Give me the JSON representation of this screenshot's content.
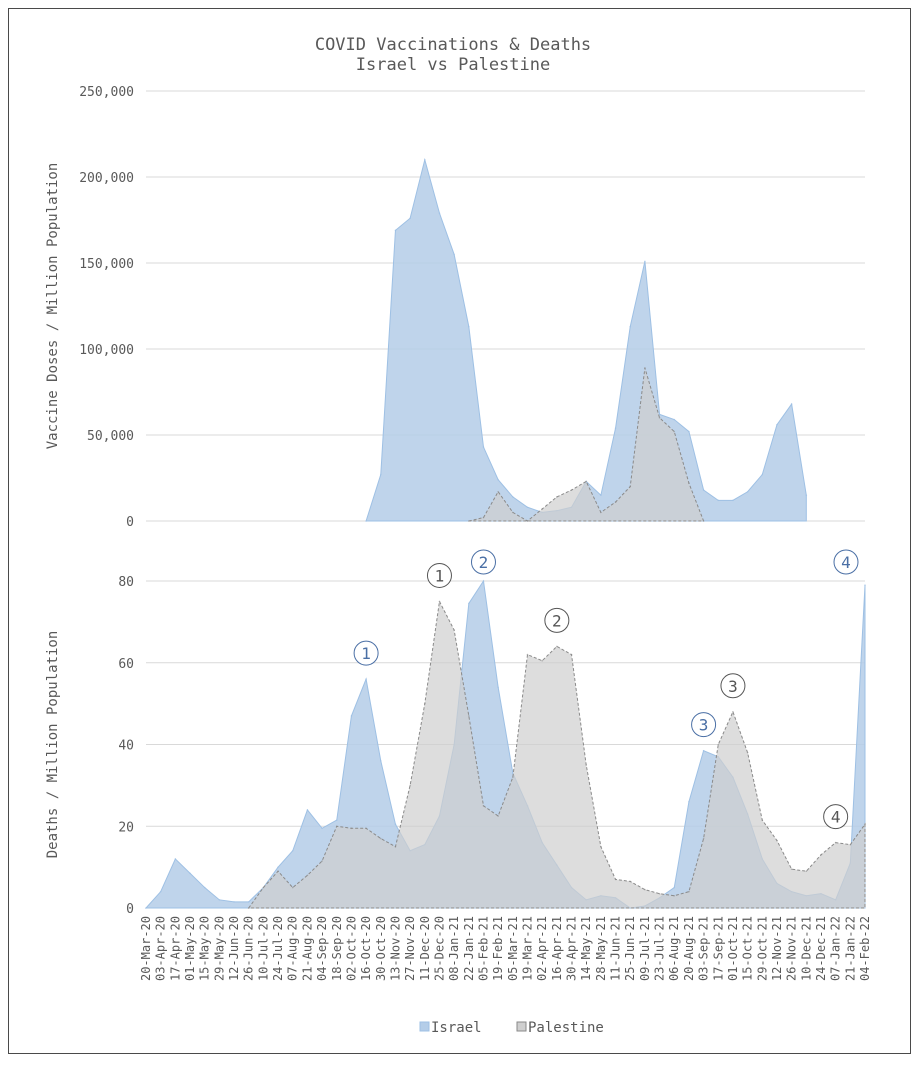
{
  "chart_data": {
    "type": "area",
    "title": "COVID Vaccinations & Deaths",
    "subtitle": "Israel vs Palestine",
    "categories": [
      "20-Mar-20",
      "03-Apr-20",
      "17-Apr-20",
      "01-May-20",
      "15-May-20",
      "29-May-20",
      "12-Jun-20",
      "26-Jun-20",
      "10-Jul-20",
      "24-Jul-20",
      "07-Aug-20",
      "21-Aug-20",
      "04-Sep-20",
      "18-Sep-20",
      "02-Oct-20",
      "16-Oct-20",
      "30-Oct-20",
      "13-Nov-20",
      "27-Nov-20",
      "11-Dec-20",
      "25-Dec-20",
      "08-Jan-21",
      "22-Jan-21",
      "05-Feb-21",
      "19-Feb-21",
      "05-Mar-21",
      "19-Mar-21",
      "02-Apr-21",
      "16-Apr-21",
      "30-Apr-21",
      "14-May-21",
      "28-May-21",
      "11-Jun-21",
      "25-Jun-21",
      "09-Jul-21",
      "23-Jul-21",
      "06-Aug-21",
      "20-Aug-21",
      "03-Sep-21",
      "17-Sep-21",
      "01-Oct-21",
      "15-Oct-21",
      "29-Oct-21",
      "12-Nov-21",
      "26-Nov-21",
      "10-Dec-21",
      "24-Dec-21",
      "07-Jan-22",
      "21-Jan-22",
      "04-Feb-22"
    ],
    "legend": [
      "Israel",
      "Palestine"
    ],
    "legend_position": "bottom",
    "charts": [
      {
        "ylabel": "Vaccine Doses / Million Population",
        "ylim": [
          0,
          250000
        ],
        "yticks": [
          "0",
          "50,000",
          "100,000",
          "150,000",
          "200,000",
          "250,000"
        ],
        "x_offset": 15,
        "series": [
          {
            "name": "Israel",
            "values": [
              0,
              27000,
              169000,
              176000,
              210000,
              179000,
              155000,
              113000,
              43000,
              24000,
              14000,
              8000,
              5000,
              6000,
              8000,
              23000,
              15000,
              54000,
              113000,
              151000,
              62000,
              59000,
              52000,
              18000,
              12000,
              12000,
              17000,
              27000,
              56000,
              68000,
              15000
            ]
          },
          {
            "name": "Palestine",
            "values": [
              null,
              null,
              null,
              null,
              null,
              null,
              null,
              0,
              2000,
              17000,
              5000,
              0,
              7000,
              14000,
              18000,
              23000,
              5000,
              11000,
              20000,
              89000,
              60000,
              52000,
              22000,
              0,
              null,
              null,
              null,
              null,
              null,
              null,
              null
            ]
          }
        ]
      },
      {
        "ylabel": "Deaths / Million Population",
        "ylim": [
          0,
          80
        ],
        "yticks": [
          "0",
          "20",
          "40",
          "60",
          "80"
        ],
        "x_offset": 0,
        "series": [
          {
            "name": "Israel",
            "values": [
              0,
              4,
              12,
              8.5,
              5,
              2,
              1.5,
              1.5,
              5,
              10,
              14,
              24,
              19.5,
              21.5,
              47,
              56,
              36,
              20.5,
              14,
              15.5,
              22.5,
              40,
              74.5,
              80,
              54,
              33,
              25,
              16,
              10.5,
              5,
              2,
              3,
              2.5,
              0,
              0.5,
              2.5,
              5,
              26,
              38.5,
              37,
              32,
              23,
              12,
              6,
              4,
              3,
              3.5,
              2,
              11,
              79
            ]
          },
          {
            "name": "Palestine",
            "values": [
              null,
              null,
              null,
              null,
              null,
              null,
              null,
              0,
              5,
              9,
              5,
              8,
              11.5,
              20,
              19.5,
              19.5,
              17,
              15,
              30,
              50,
              75,
              68,
              47,
              25,
              22.5,
              32,
              62,
              60.5,
              64,
              62,
              35,
              15,
              7,
              6.5,
              4.5,
              3.5,
              3,
              4,
              17,
              40,
              48,
              38,
              21.5,
              16.5,
              9.5,
              9,
              13,
              16,
              15.5,
              20.5
            ]
          }
        ],
        "annotations": [
          {
            "label": "1",
            "series": "Israel",
            "category": "16-Oct-20"
          },
          {
            "label": "2",
            "series": "Israel",
            "category": "05-Feb-21"
          },
          {
            "label": "3",
            "series": "Israel",
            "category": "03-Sep-21"
          },
          {
            "label": "4",
            "series": "Israel",
            "category": "04-Feb-22"
          },
          {
            "label": "1",
            "series": "Palestine",
            "category": "25-Dec-20"
          },
          {
            "label": "2",
            "series": "Palestine",
            "category": "16-Apr-21"
          },
          {
            "label": "3",
            "series": "Palestine",
            "category": "01-Oct-21"
          },
          {
            "label": "4",
            "series": "Palestine",
            "category": "07-Jan-22"
          }
        ]
      }
    ]
  },
  "colors": {
    "israel_fill": "#b4cde8",
    "israel_stroke": "#9ec0e4",
    "palestine_fill": "#cfcfcf",
    "palestine_stroke": "#8a8a8a",
    "israel_annotation": "#4a6fa5",
    "palestine_annotation": "#555555"
  }
}
